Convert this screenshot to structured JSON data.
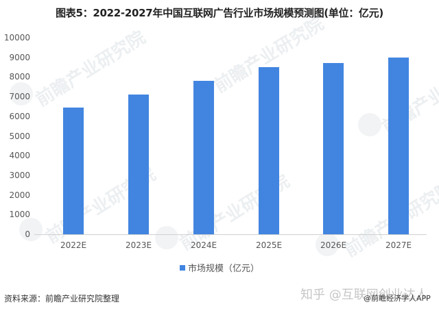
{
  "title": "图表5：2022-2027年中国互联网广告行业市场规模预测图(单位：亿元)",
  "legend": {
    "label": "市场规模（亿元）",
    "color": "#4285e0"
  },
  "source": "资料来源：前瞻产业研究院整理",
  "watermark": {
    "brand": "前瞻产业研究院",
    "zhihu": "知乎 @互联网创业达人",
    "app": "@前瞻经济学人APP"
  },
  "y_ticks": [
    "10000",
    "9000",
    "8000",
    "7000",
    "6000",
    "5000",
    "4000",
    "3000",
    "2000",
    "1000",
    "0"
  ],
  "x_ticks": [
    "2022E",
    "2023E",
    "2024E",
    "2025E",
    "2026E",
    "2027E"
  ],
  "chart_data": {
    "type": "bar",
    "title": "图表5：2022-2027年中国互联网广告行业市场规模预测图(单位：亿元)",
    "categories": [
      "2022E",
      "2023E",
      "2024E",
      "2025E",
      "2026E",
      "2027E"
    ],
    "series": [
      {
        "name": "市场规模（亿元）",
        "values": [
          6450,
          7100,
          7800,
          8500,
          8700,
          9000
        ],
        "color": "#4285e0"
      }
    ],
    "xlabel": "",
    "ylabel": "",
    "ylim": [
      0,
      10000
    ],
    "ytick_step": 1000,
    "grid": false,
    "legend_position": "bottom"
  }
}
